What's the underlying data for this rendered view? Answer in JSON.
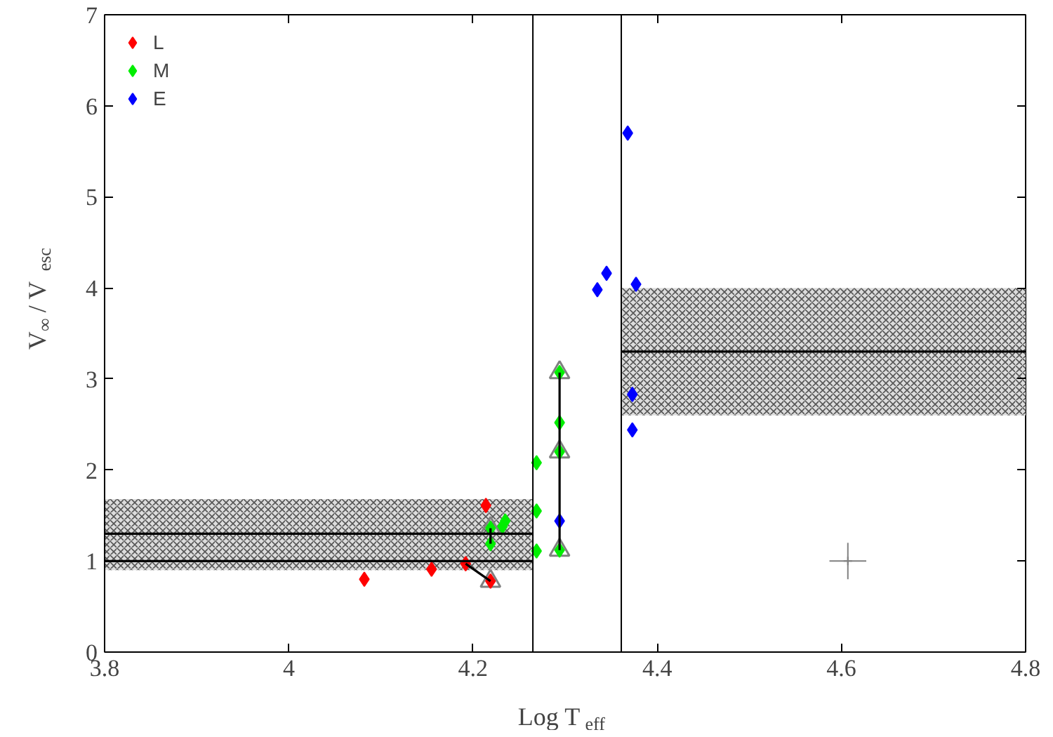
{
  "chart_data": {
    "type": "scatter",
    "xlabel": "Log T$_{eff}$",
    "ylabel": "V$_{∞}$ / V$_{esc}$",
    "xlim": [
      3.8,
      4.8
    ],
    "xticks": [
      3.8,
      {
        "value": 4.0,
        "label": "4"
      },
      4.2,
      4.4,
      4.6,
      4.8
    ],
    "ylim": [
      0,
      7
    ],
    "yticks": [
      0,
      1,
      2,
      3,
      4,
      5,
      6,
      7
    ],
    "grid": false,
    "legend": "top left",
    "marker": "diamond",
    "ref_lines": [
      {
        "axis": "x",
        "value": 4.265,
        "color": "#000000"
      },
      {
        "axis": "x",
        "value": 4.361,
        "color": "#000000"
      }
    ],
    "series": [
      {
        "type": "line",
        "color": "#000000",
        "marker": "none",
        "x": [
          3.8,
          4.265
        ],
        "values": [
          1.3,
          1.3
        ],
        "lower": [
          0.9,
          0.9
        ],
        "upper": [
          1.68,
          1.68
        ]
      },
      {
        "type": "line",
        "color": "#000000",
        "marker": "none",
        "x": [
          3.8,
          4.265
        ],
        "values": [
          1.0,
          1.0
        ]
      },
      {
        "type": "line",
        "color": "#000000",
        "marker": "none",
        "x": [
          4.361,
          4.8
        ],
        "values": [
          3.3,
          3.3
        ],
        "lower": [
          2.6,
          2.6
        ],
        "upper": [
          4.0,
          4.0
        ]
      },
      {
        "type": "line",
        "color": "#000000",
        "marker": "none",
        "x": [
          4.294,
          4.294
        ],
        "values": [
          1.12,
          3.07
        ]
      },
      {
        "type": "line",
        "color": "#000000",
        "marker": "none",
        "x": [
          4.219,
          4.219
        ],
        "values": [
          1.19,
          1.36
        ]
      },
      {
        "type": "line",
        "color": "#000000",
        "marker": "none",
        "x": [
          4.192,
          4.219
        ],
        "values": [
          0.97,
          0.78
        ]
      },
      {
        "color": "#808080",
        "marker": "triangle",
        "x": [
          4.219,
          4.219,
          4.294,
          4.294,
          4.294
        ],
        "values": [
          0.78,
          1.36,
          1.12,
          2.2,
          3.07
        ]
      },
      {
        "name": "L",
        "color": "#ff0000",
        "x": [
          4.082,
          4.155,
          4.192,
          4.214,
          4.219
        ],
        "values": [
          0.8,
          0.91,
          0.97,
          1.61,
          0.78
        ]
      },
      {
        "name": "M",
        "color": "#00ee00",
        "x": [
          4.219,
          4.219,
          4.235,
          4.232,
          4.269,
          4.269,
          4.269,
          4.294,
          4.294,
          4.294,
          4.294
        ],
        "values": [
          1.36,
          1.19,
          1.44,
          1.38,
          2.08,
          1.55,
          1.11,
          3.07,
          2.52,
          2.2,
          1.12
        ]
      },
      {
        "name": "E",
        "color": "#0000ff",
        "x": [
          4.294,
          4.335,
          4.345,
          4.373,
          4.373,
          4.368,
          4.377
        ],
        "values": [
          1.44,
          3.98,
          4.16,
          2.83,
          2.44,
          5.7,
          4.04
        ]
      },
      {
        "color": "#808080",
        "marker": "cross",
        "x": [
          4.607
        ],
        "values": [
          1.0
        ],
        "errors": [
          0.2
        ],
        "xerrors": [
          0.02
        ]
      }
    ]
  }
}
